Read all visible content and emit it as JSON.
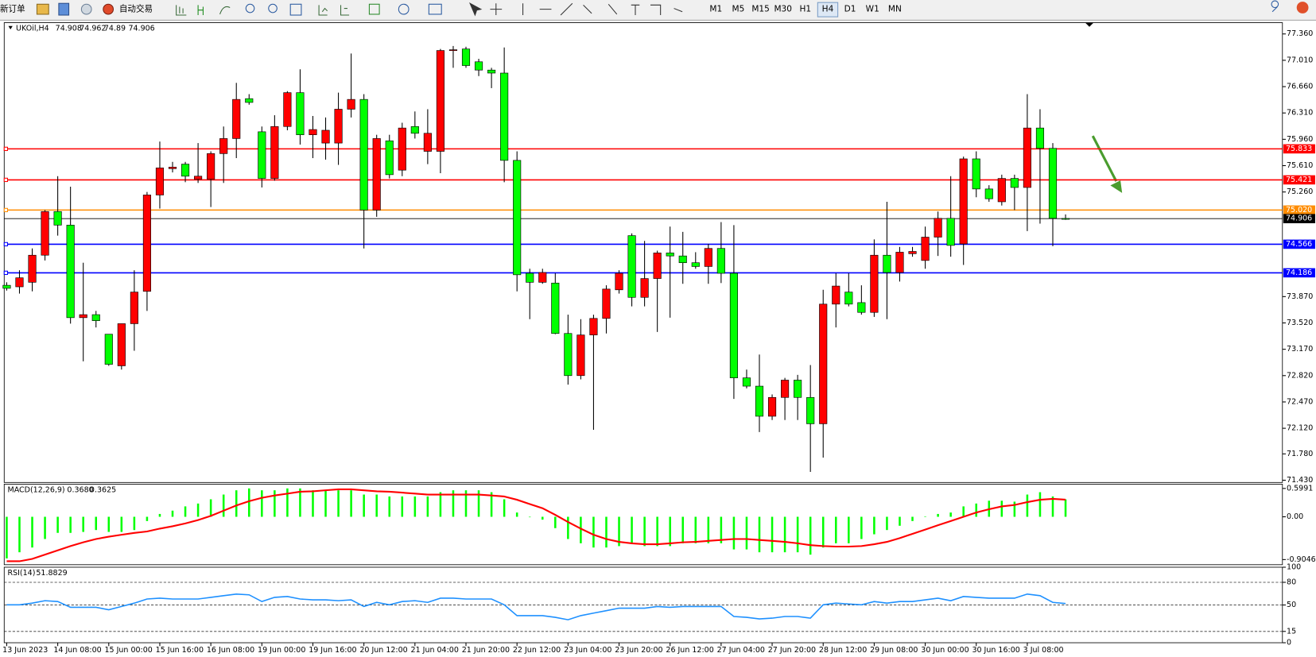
{
  "toolbar": {
    "new_order": "新订单",
    "auto_trading": "自动交易",
    "timeframes": [
      "M1",
      "M5",
      "M15",
      "M30",
      "H1",
      "H4",
      "D1",
      "W1",
      "MN"
    ],
    "active_timeframe": "H4"
  },
  "chart_data": [
    {
      "type": "candlestick",
      "title": "UKOil,H4",
      "categories": [
        "13 Jun 2023",
        null,
        null,
        null,
        "14 Jun 08:00",
        null,
        null,
        null,
        "15 Jun 00:00",
        null,
        null,
        null,
        "15 Jun 16:00",
        null,
        null,
        null,
        "16 Jun 08:00",
        null,
        null,
        null,
        "19 Jun 00:00",
        null,
        null,
        null,
        "19 Jun 16:00",
        null,
        null,
        null,
        "20 Jun 12:00",
        null,
        null,
        null,
        "21 Jun 04:00",
        null,
        null,
        null,
        "21 Jun 20:00",
        null,
        null,
        null,
        "22 Jun 12:00",
        null,
        null,
        null,
        "23 Jun 04:00",
        null,
        null,
        null,
        "23 Jun 20:00",
        null,
        null,
        null,
        "26 Jun 12:00",
        null,
        null,
        null,
        "27 Jun 04:00",
        null,
        null,
        null,
        "27 Jun 20:00",
        null,
        null,
        null,
        "28 Jun 12:00",
        null,
        null,
        null,
        "29 Jun 08:00",
        null,
        null,
        null,
        "30 Jun 00:00",
        null,
        null,
        null,
        "30 Jun 16:00",
        null,
        null,
        null,
        "3 Jul 08:00",
        null,
        null,
        null
      ],
      "open": [
        74.02,
        74.0,
        74.06,
        74.42,
        75.0,
        74.82,
        73.59,
        73.63,
        73.37,
        72.95,
        73.51,
        73.94,
        75.22,
        75.57,
        75.63,
        75.43,
        75.43,
        75.77,
        75.97,
        76.5,
        76.06,
        75.44,
        76.13,
        76.58,
        76.02,
        75.91,
        75.91,
        76.36,
        76.49,
        75.02,
        75.94,
        75.55,
        76.13,
        75.8,
        75.8,
        77.14,
        77.16,
        76.99,
        76.88,
        76.84,
        75.68,
        74.18,
        74.06,
        74.05,
        73.38,
        72.82,
        73.36,
        73.58,
        73.96,
        74.68,
        73.86,
        74.11,
        74.45,
        74.41,
        74.32,
        74.27,
        74.51,
        74.18,
        72.79,
        72.68,
        72.28,
        72.53,
        72.76,
        72.53,
        72.18,
        73.77,
        73.93,
        73.79,
        73.66,
        74.42,
        74.19,
        74.44,
        74.35,
        74.66,
        74.91,
        74.57,
        75.7,
        75.3,
        75.13,
        75.44,
        75.32,
        76.11,
        75.84,
        74.908
      ],
      "high": [
        74.06,
        74.22,
        74.51,
        75.02,
        75.47,
        75.33,
        74.32,
        73.68,
        73.37,
        73.51,
        74.22,
        75.26,
        75.93,
        75.66,
        75.66,
        75.91,
        75.8,
        76.13,
        76.71,
        76.56,
        76.13,
        76.28,
        76.6,
        76.89,
        76.27,
        76.25,
        76.58,
        77.1,
        76.56,
        76.02,
        76.02,
        76.18,
        76.33,
        76.36,
        77.16,
        77.2,
        77.19,
        77.03,
        76.91,
        77.18,
        75.8,
        74.24,
        74.24,
        74.18,
        73.63,
        73.57,
        73.63,
        74.02,
        74.22,
        74.71,
        74.61,
        74.48,
        74.8,
        74.73,
        74.46,
        74.57,
        74.86,
        74.82,
        72.9,
        73.1,
        72.57,
        72.79,
        72.83,
        72.96,
        73.96,
        74.18,
        74.18,
        74.02,
        74.63,
        75.13,
        74.53,
        74.53,
        74.8,
        75.0,
        75.47,
        75.73,
        75.8,
        75.35,
        75.49,
        75.49,
        76.56,
        76.36,
        75.91,
        74.962
      ],
      "low": [
        73.95,
        73.91,
        73.94,
        74.35,
        74.68,
        73.51,
        73.01,
        73.46,
        72.95,
        72.9,
        73.15,
        73.68,
        75.04,
        75.52,
        75.39,
        75.38,
        75.06,
        75.38,
        75.71,
        76.42,
        75.32,
        75.41,
        76.08,
        75.89,
        75.71,
        75.69,
        75.62,
        76.25,
        74.51,
        74.93,
        75.44,
        75.47,
        75.97,
        75.63,
        75.51,
        76.91,
        76.91,
        76.8,
        76.64,
        75.39,
        73.94,
        73.57,
        74.04,
        73.37,
        72.7,
        72.77,
        72.1,
        73.38,
        73.91,
        73.74,
        73.74,
        73.4,
        73.59,
        74.04,
        74.24,
        74.04,
        74.05,
        72.51,
        72.65,
        72.07,
        72.23,
        72.23,
        72.23,
        71.54,
        71.73,
        73.46,
        73.74,
        73.63,
        73.6,
        73.57,
        74.07,
        74.4,
        74.24,
        74.41,
        74.4,
        74.29,
        75.19,
        75.13,
        75.08,
        75.02,
        74.74,
        74.84,
        74.54,
        74.89
      ],
      "close": [
        73.98,
        74.12,
        74.42,
        75.0,
        74.82,
        73.59,
        73.63,
        73.55,
        72.97,
        73.51,
        73.93,
        75.22,
        75.58,
        75.59,
        75.47,
        75.47,
        75.77,
        75.97,
        76.49,
        76.45,
        75.44,
        76.13,
        76.58,
        76.02,
        76.09,
        76.08,
        76.36,
        76.49,
        75.02,
        75.97,
        75.49,
        76.11,
        76.04,
        76.04,
        77.14,
        77.15,
        76.94,
        76.88,
        76.84,
        75.68,
        74.16,
        74.06,
        74.19,
        73.38,
        72.82,
        73.36,
        73.58,
        73.97,
        74.18,
        73.86,
        74.11,
        74.45,
        74.41,
        74.32,
        74.27,
        74.51,
        74.18,
        72.79,
        72.68,
        72.28,
        72.53,
        72.76,
        72.53,
        72.18,
        73.77,
        74.01,
        73.77,
        73.66,
        74.42,
        74.19,
        74.46,
        74.47,
        74.66,
        74.91,
        74.55,
        75.7,
        75.3,
        75.17,
        75.44,
        75.32,
        76.11,
        75.84,
        74.91,
        74.906
      ],
      "up_color": "#ff0000",
      "down_color": "#00ff00",
      "ylim": [
        71.4,
        77.51
      ],
      "yticks": [
        {
          "value": 77.36,
          "label": "77.360"
        },
        {
          "value": 77.01,
          "label": "77.010"
        },
        {
          "value": 76.66,
          "label": "76.660"
        },
        {
          "value": 76.31,
          "label": "76.310"
        },
        {
          "value": 75.96,
          "label": "75.960"
        },
        {
          "value": 75.61,
          "label": "75.610"
        },
        {
          "value": 75.26,
          "label": "75.260"
        },
        {
          "value": 73.87,
          "label": "73.870"
        },
        {
          "value": 73.52,
          "label": "73.520"
        },
        {
          "value": 73.17,
          "label": "73.170"
        },
        {
          "value": 72.82,
          "label": "72.820"
        },
        {
          "value": 72.47,
          "label": "72.470"
        },
        {
          "value": 72.12,
          "label": "72.120"
        },
        {
          "value": 71.78,
          "label": "71.780"
        },
        {
          "value": 71.43,
          "label": "71.430"
        }
      ],
      "levels": [
        {
          "value": 75.833,
          "color": "#ff0000"
        },
        {
          "value": 75.421,
          "color": "#ff0000"
        },
        {
          "value": 75.02,
          "label": "75.020",
          "color": "#ff8c00"
        },
        {
          "value": 74.566,
          "color": "#0000ff"
        },
        {
          "value": 74.186,
          "color": "#0000ff"
        }
      ]
    },
    {
      "type": "macd",
      "title": "MACD(12,26,9)",
      "last_value_labels": [
        "0.3680",
        "0.3625"
      ],
      "histogram": [
        -0.88,
        -0.75,
        -0.65,
        -0.47,
        -0.34,
        -0.34,
        -0.32,
        -0.28,
        -0.32,
        -0.32,
        -0.28,
        -0.09,
        0.06,
        0.13,
        0.22,
        0.28,
        0.37,
        0.47,
        0.56,
        0.6,
        0.56,
        0.56,
        0.6,
        0.6,
        0.56,
        0.56,
        0.56,
        0.56,
        0.47,
        0.47,
        0.43,
        0.43,
        0.43,
        0.43,
        0.52,
        0.56,
        0.56,
        0.56,
        0.52,
        0.37,
        0.09,
        -0.01,
        -0.06,
        -0.24,
        -0.47,
        -0.56,
        -0.65,
        -0.65,
        -0.62,
        -0.56,
        -0.62,
        -0.62,
        -0.62,
        -0.56,
        -0.56,
        -0.56,
        -0.56,
        -0.69,
        -0.69,
        -0.75,
        -0.75,
        -0.75,
        -0.75,
        -0.8,
        -0.65,
        -0.56,
        -0.56,
        -0.47,
        -0.37,
        -0.28,
        -0.19,
        -0.09,
        0.01,
        0.06,
        0.09,
        0.22,
        0.28,
        0.34,
        0.34,
        0.32,
        0.47,
        0.52,
        0.43,
        0.368
      ],
      "signal": [
        -0.94,
        -0.94,
        -0.89,
        -0.8,
        -0.71,
        -0.62,
        -0.54,
        -0.47,
        -0.42,
        -0.38,
        -0.34,
        -0.31,
        -0.25,
        -0.2,
        -0.14,
        -0.07,
        0.02,
        0.13,
        0.24,
        0.33,
        0.4,
        0.45,
        0.49,
        0.53,
        0.54,
        0.56,
        0.58,
        0.58,
        0.56,
        0.54,
        0.53,
        0.51,
        0.49,
        0.47,
        0.47,
        0.47,
        0.47,
        0.47,
        0.45,
        0.43,
        0.36,
        0.27,
        0.18,
        0.04,
        -0.11,
        -0.25,
        -0.38,
        -0.47,
        -0.53,
        -0.56,
        -0.58,
        -0.58,
        -0.56,
        -0.54,
        -0.53,
        -0.51,
        -0.49,
        -0.47,
        -0.47,
        -0.49,
        -0.51,
        -0.53,
        -0.56,
        -0.6,
        -0.62,
        -0.63,
        -0.63,
        -0.62,
        -0.58,
        -0.53,
        -0.45,
        -0.36,
        -0.27,
        -0.18,
        -0.09,
        0.0,
        0.09,
        0.16,
        0.22,
        0.25,
        0.31,
        0.36,
        0.38,
        0.3625
      ],
      "histogram_color": "#00ff00",
      "signal_color": "#ff0000",
      "ylim": [
        -1.013,
        0.69
      ],
      "yticks": [
        0.5991,
        {
          "value": 0,
          "label": "0.00"
        },
        -0.9046
      ]
    },
    {
      "type": "line",
      "title": "RSI(14)",
      "values": [
        50.2,
        50.2,
        52.4,
        55.7,
        54.6,
        46.9,
        46.9,
        46.9,
        43.7,
        48.0,
        52.4,
        57.9,
        59.0,
        57.9,
        57.9,
        57.9,
        60.1,
        62.3,
        64.5,
        63.4,
        54.6,
        60.1,
        61.2,
        57.9,
        56.8,
        56.8,
        55.7,
        56.8,
        48.0,
        53.5,
        50.2,
        54.6,
        55.7,
        53.5,
        59.0,
        59.0,
        57.9,
        57.9,
        57.9,
        50.2,
        35.9,
        35.9,
        35.9,
        33.7,
        30.4,
        35.9,
        39.2,
        42.5,
        45.8,
        45.8,
        45.8,
        48.0,
        46.9,
        48.0,
        48.0,
        48.0,
        48.0,
        34.8,
        33.7,
        31.5,
        32.6,
        34.8,
        34.8,
        32.6,
        50.2,
        52.4,
        51.3,
        50.2,
        54.6,
        52.4,
        54.6,
        54.6,
        56.8,
        59.0,
        55.7,
        61.2,
        60.1,
        59.0,
        59.0,
        59.0,
        64.5,
        62.3,
        53.5,
        51.8829
      ],
      "color": "#1e90ff",
      "ylim": [
        0,
        100
      ],
      "yticks": [
        100,
        80,
        50,
        15,
        0
      ],
      "levels": [
        80,
        50,
        15
      ]
    }
  ]
}
